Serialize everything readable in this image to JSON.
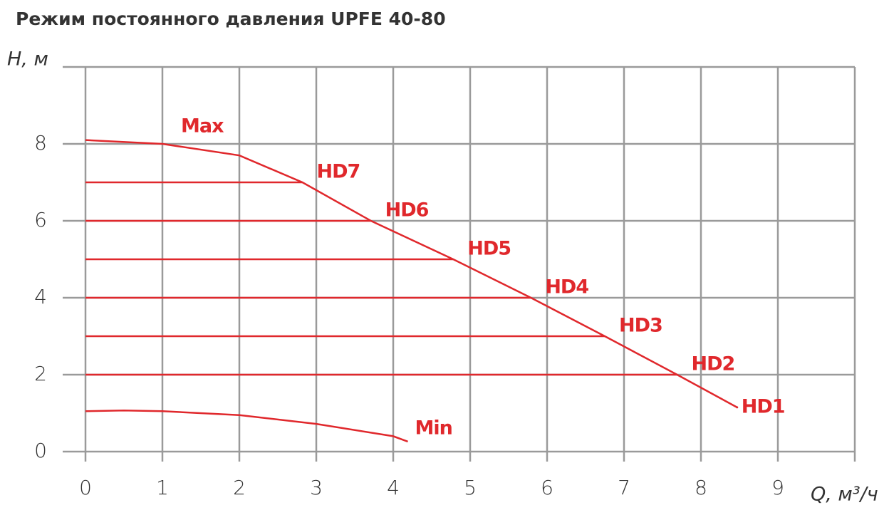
{
  "chart_data": {
    "type": "line",
    "title": "Режим постоянного давления UPFE 40-80",
    "y_label": "H, м",
    "x_label": "Q, м³/ч",
    "xlim": [
      0,
      10
    ],
    "ylim": [
      0,
      10
    ],
    "xticks": [
      0,
      1,
      2,
      3,
      4,
      5,
      6,
      7,
      8,
      9
    ],
    "yticks": [
      0,
      2,
      4,
      6,
      8
    ],
    "grid": true,
    "color": "#e0282c",
    "series": [
      {
        "name": "Max",
        "x": [
          0,
          1,
          2,
          2.82,
          3.71,
          4.78,
          5.79,
          6.75,
          7.69,
          8.47
        ],
        "values": [
          8.1,
          8.0,
          7.7,
          7.0,
          6.0,
          5.0,
          4.0,
          3.0,
          2.0,
          1.15
        ]
      },
      {
        "name": "HD7",
        "x": [
          0,
          2.82
        ],
        "values": [
          7,
          7
        ]
      },
      {
        "name": "HD6",
        "x": [
          0,
          3.71
        ],
        "values": [
          6,
          6
        ]
      },
      {
        "name": "HD5",
        "x": [
          0,
          4.78
        ],
        "values": [
          5,
          5
        ]
      },
      {
        "name": "HD4",
        "x": [
          0,
          5.79
        ],
        "values": [
          4,
          4
        ]
      },
      {
        "name": "HD3",
        "x": [
          0,
          6.75
        ],
        "values": [
          3,
          3
        ]
      },
      {
        "name": "HD2",
        "x": [
          0,
          7.69
        ],
        "values": [
          2,
          2
        ]
      },
      {
        "name": "HD1",
        "x": [
          8.47
        ],
        "values": [
          1.15
        ]
      },
      {
        "name": "Min",
        "x": [
          0,
          0.5,
          1,
          2,
          3,
          4,
          4.19
        ],
        "values": [
          1.05,
          1.07,
          1.05,
          0.95,
          0.72,
          0.4,
          0.26
        ]
      }
    ]
  }
}
